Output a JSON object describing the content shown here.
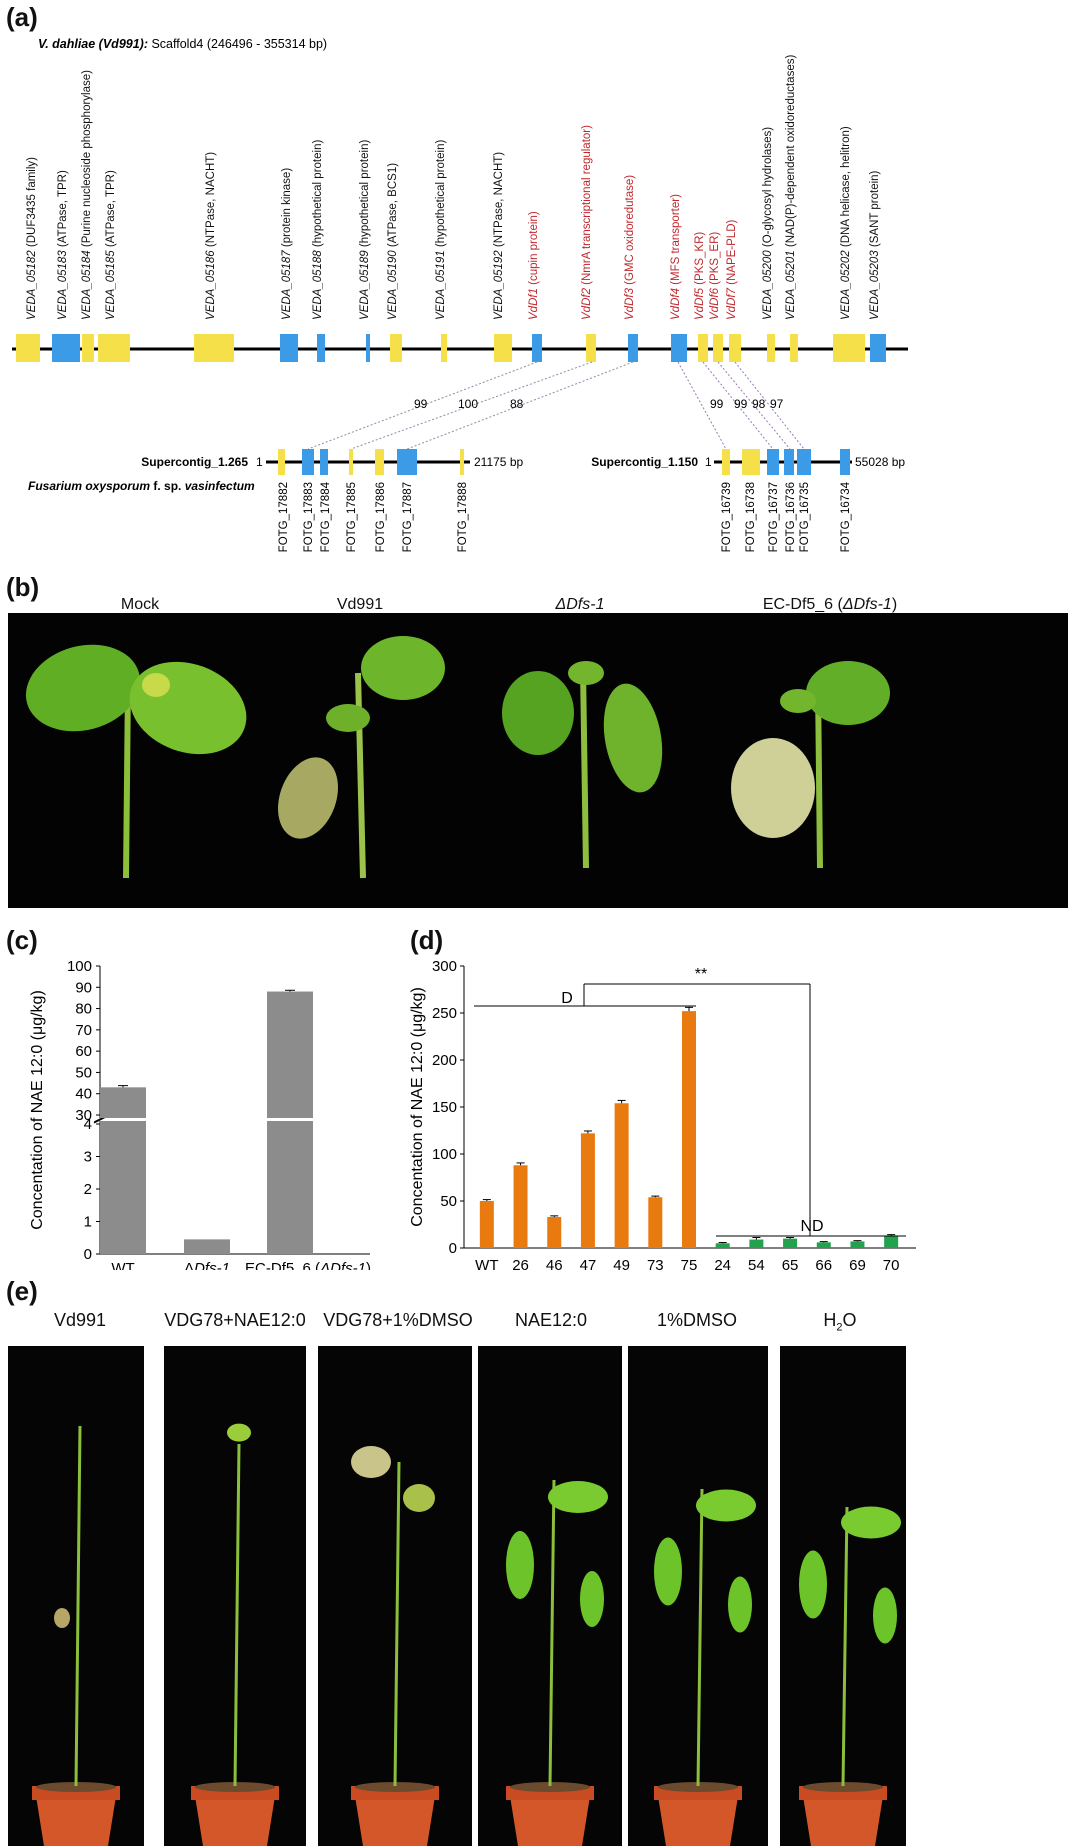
{
  "panels": {
    "a": "(a)",
    "b": "(b)",
    "c": "(c)",
    "d": "(d)",
    "e": "(e)"
  },
  "panel_a": {
    "header_bold": "V. dahliae (Vd991):",
    "header_rest": " Scaffold4 (246496 - 355314 bp)",
    "genes": [
      {
        "id": "VEDA_05182",
        "desc": " (DUF3435 family)",
        "color": "#F5E04A",
        "highlight": false
      },
      {
        "id": "VEDA_05183",
        "desc": " (ATPase, TPR)",
        "color": "#3C9BE6",
        "highlight": false
      },
      {
        "id": "VEDA_05184",
        "desc": " (Purine nucleoside phosphorylase)",
        "color": "#F5E04A",
        "highlight": false
      },
      {
        "id": "VEDA_05185",
        "desc": " (ATPase, TPR)",
        "color": "#F5E04A",
        "highlight": false
      },
      {
        "id": "VEDA_05186",
        "desc": " (NTPase, NACHT)",
        "color": "#F5E04A",
        "highlight": false
      },
      {
        "id": "VEDA_05187",
        "desc": " (protein kinase)",
        "color": "#3C9BE6",
        "highlight": false
      },
      {
        "id": "VEDA_05188",
        "desc": " (hypothetical protein)",
        "color": "#3C9BE6",
        "highlight": false
      },
      {
        "id": "VEDA_05189",
        "desc": " (hypothetical protein)",
        "color": "#3C9BE6",
        "highlight": false
      },
      {
        "id": "VEDA_05190",
        "desc": " (ATPase, BCS1)",
        "color": "#F5E04A",
        "highlight": false
      },
      {
        "id": "VEDA_05191",
        "desc": " (hypothetical protein)",
        "color": "#F5E04A",
        "highlight": false
      },
      {
        "id": "VEDA_05192",
        "desc": " (NTPase, NACHT)",
        "color": "#F5E04A",
        "highlight": false
      },
      {
        "id": "VdDf1",
        "desc": " (cupin protein)",
        "color": "#3C9BE6",
        "highlight": true
      },
      {
        "id": "VdDf2",
        "desc": " (NmrA transcriptional regulator)",
        "color": "#F5E04A",
        "highlight": true
      },
      {
        "id": "VdDf3",
        "desc": " (GMC oxidoredutase)",
        "color": "#3C9BE6",
        "highlight": true
      },
      {
        "id": "VdDf4",
        "desc": " (MFS transporter)",
        "color": "#3C9BE6",
        "highlight": true
      },
      {
        "id": "VdDf5",
        "desc": " (PKS_KR)",
        "color": "#F5E04A",
        "highlight": true
      },
      {
        "id": "VdDf6",
        "desc": " (PKS_ER)",
        "color": "#F5E04A",
        "highlight": true
      },
      {
        "id": "VdDf7",
        "desc": " (NAPE-PLD)",
        "color": "#F5E04A",
        "highlight": true
      },
      {
        "id": "VEDA_05200",
        "desc": " (O-glycosyl hydrolases)",
        "color": "#F5E04A",
        "highlight": false
      },
      {
        "id": "VEDA_05201",
        "desc": " (NAD(P)-dependent oxidoreductases)",
        "color": "#F5E04A",
        "highlight": false
      },
      {
        "id": "VEDA_05202",
        "desc": " (DNA helicase, helitron)",
        "color": "#F5E04A",
        "highlight": false
      },
      {
        "id": "VEDA_05203",
        "desc": " (SANT protein)",
        "color": "#3C9BE6",
        "highlight": false
      }
    ],
    "identities": [
      "99",
      "100",
      "88",
      "99",
      "99",
      "98",
      "97"
    ],
    "contig1": {
      "name": "Supercontig_1.265",
      "start": "1",
      "end": "21175 bp",
      "genes": [
        "FOTG_17882",
        "FOTG_17883",
        "FOTG_17884",
        "FOTG_17885",
        "FOTG_17886",
        "FOTG_17887",
        "FOTG_17888"
      ]
    },
    "species_prefix": "Fusarium oxysporum",
    "species_mid": " f. sp. ",
    "species_suffix": "vasinfectum",
    "contig2": {
      "name": "Supercontig_1.150",
      "start": "1",
      "end": "55028 bp",
      "genes": [
        "FOTG_16739",
        "FOTG_16738",
        "FOTG_16737",
        "FOTG_16736",
        "FOTG_16735",
        "FOTG_16734"
      ]
    }
  },
  "panel_b": {
    "captions": [
      "Mock",
      "Vd991",
      "ΔDfs-1",
      "EC-Df5_6 (",
      "ΔDfs-1",
      ")"
    ]
  },
  "panel_e": {
    "captions": [
      "Vd991",
      "VDG78+NAE12:0",
      "VDG78+1%DMSO",
      "NAE12:0",
      "1%DMSO",
      "H",
      "2",
      "O"
    ]
  },
  "chart_data": [
    {
      "type": "bar",
      "title": "",
      "xlabel": "",
      "ylabel": "Concentation of NAE 12:0 (μg/kg)",
      "categories": [
        "WT",
        "ΔDfs-1",
        "EC-Df5_6 (ΔDfs-1)"
      ],
      "values": [
        43,
        0.45,
        88
      ],
      "errors": [
        0.8,
        0.03,
        0.6
      ],
      "color": "#8C8C8C",
      "axis_break": {
        "lower_range": [
          0,
          4
        ],
        "upper_range": [
          30,
          100
        ]
      },
      "lower_ticks": [
        0,
        1,
        2,
        3,
        4
      ],
      "upper_ticks": [
        30,
        40,
        50,
        60,
        70,
        80,
        90,
        100
      ]
    },
    {
      "type": "bar",
      "title": "",
      "xlabel": "",
      "ylabel": "Concentation of NAE 12:0 (μg/kg)",
      "ylim": [
        0,
        300
      ],
      "yticks": [
        0,
        50,
        100,
        150,
        200,
        250,
        300
      ],
      "categories": [
        "WT",
        "26",
        "46",
        "47",
        "49",
        "73",
        "75",
        "24",
        "54",
        "65",
        "66",
        "69",
        "70"
      ],
      "values": [
        50,
        88,
        33,
        122,
        154,
        54,
        252,
        5,
        9,
        10,
        6,
        7,
        13
      ],
      "errors": [
        1.5,
        2.5,
        1.2,
        2.5,
        3,
        1.2,
        4,
        0.8,
        2.2,
        1.2,
        0.8,
        0.8,
        1.2
      ],
      "colors": [
        "#E97A10",
        "#E97A10",
        "#E97A10",
        "#E97A10",
        "#E97A10",
        "#E97A10",
        "#E97A10",
        "#22A24E",
        "#22A24E",
        "#22A24E",
        "#22A24E",
        "#22A24E",
        "#22A24E"
      ],
      "annotations": {
        "group1": "D",
        "group2": "ND",
        "significance": "**"
      }
    }
  ]
}
